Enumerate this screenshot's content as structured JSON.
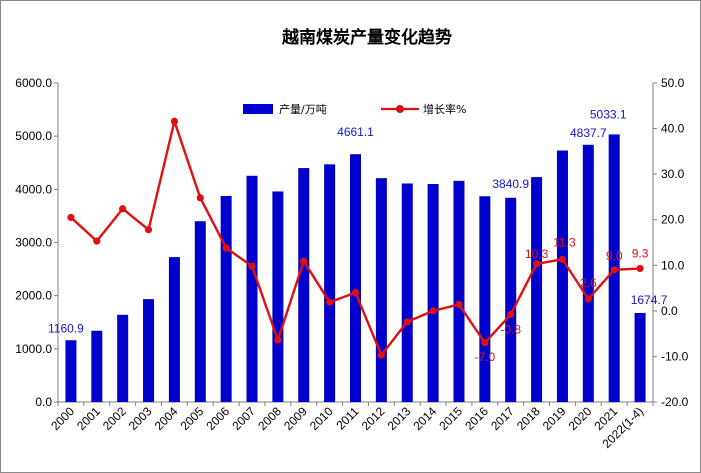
{
  "chart_data": {
    "type": "bar",
    "title": "越南煤炭产量变化趋势",
    "categories": [
      "2000",
      "2001",
      "2002",
      "2003",
      "2004",
      "2005",
      "2006",
      "2007",
      "2008",
      "2009",
      "2010",
      "2011",
      "2012",
      "2013",
      "2014",
      "2015",
      "2016",
      "2017",
      "2018",
      "2019",
      "2020",
      "2021",
      "2022(1-4)"
    ],
    "series": [
      {
        "name": "产量/万吨",
        "type": "bar",
        "axis": "left",
        "color": "#0000cc",
        "values": [
          1160.9,
          1340,
          1640,
          1935,
          2725,
          3400,
          3875,
          4255,
          3960,
          4400,
          4470,
          4661.1,
          4210,
          4110,
          4100,
          4160,
          3870,
          3840.9,
          4230,
          4730,
          4837.7,
          5033.1,
          1674.7
        ]
      },
      {
        "name": "增长率%",
        "type": "line",
        "axis": "right",
        "color": "#e01010",
        "values": [
          20.5,
          15.3,
          22.4,
          17.8,
          41.6,
          24.8,
          13.8,
          9.8,
          -6.4,
          10.9,
          1.9,
          4.0,
          -9.7,
          -2.4,
          0.0,
          1.4,
          -7.0,
          -0.8,
          10.3,
          11.3,
          2.6,
          9.0,
          9.3
        ]
      }
    ],
    "y_left": {
      "min": 0,
      "max": 6000,
      "step": 1000,
      "ticks": [
        "0.0",
        "1000.0",
        "2000.0",
        "3000.0",
        "4000.0",
        "5000.0",
        "6000.0"
      ]
    },
    "y_right": {
      "min": -20,
      "max": 50,
      "step": 10,
      "ticks": [
        "-20.0",
        "-10.0",
        "0.0",
        "10.0",
        "20.0",
        "30.0",
        "40.0",
        "50.0"
      ]
    },
    "bar_labels": [
      {
        "index": 0,
        "text": "1160.9"
      },
      {
        "index": 11,
        "text": "4661.1"
      },
      {
        "index": 17,
        "text": "3840.9"
      },
      {
        "index": 20,
        "text": "4837.7"
      },
      {
        "index": 21,
        "text": "5033.1"
      },
      {
        "index": 22,
        "text": "1674.7"
      }
    ],
    "line_labels": [
      {
        "index": 16,
        "text": "-7.0"
      },
      {
        "index": 17,
        "text": "-0.8"
      },
      {
        "index": 18,
        "text": "10.3"
      },
      {
        "index": 19,
        "text": "11.3"
      },
      {
        "index": 20,
        "text": "2.6"
      },
      {
        "index": 21,
        "text": "9.0"
      },
      {
        "index": 22,
        "text": "9.3"
      }
    ],
    "legend_position": "top-center",
    "grid": false
  }
}
